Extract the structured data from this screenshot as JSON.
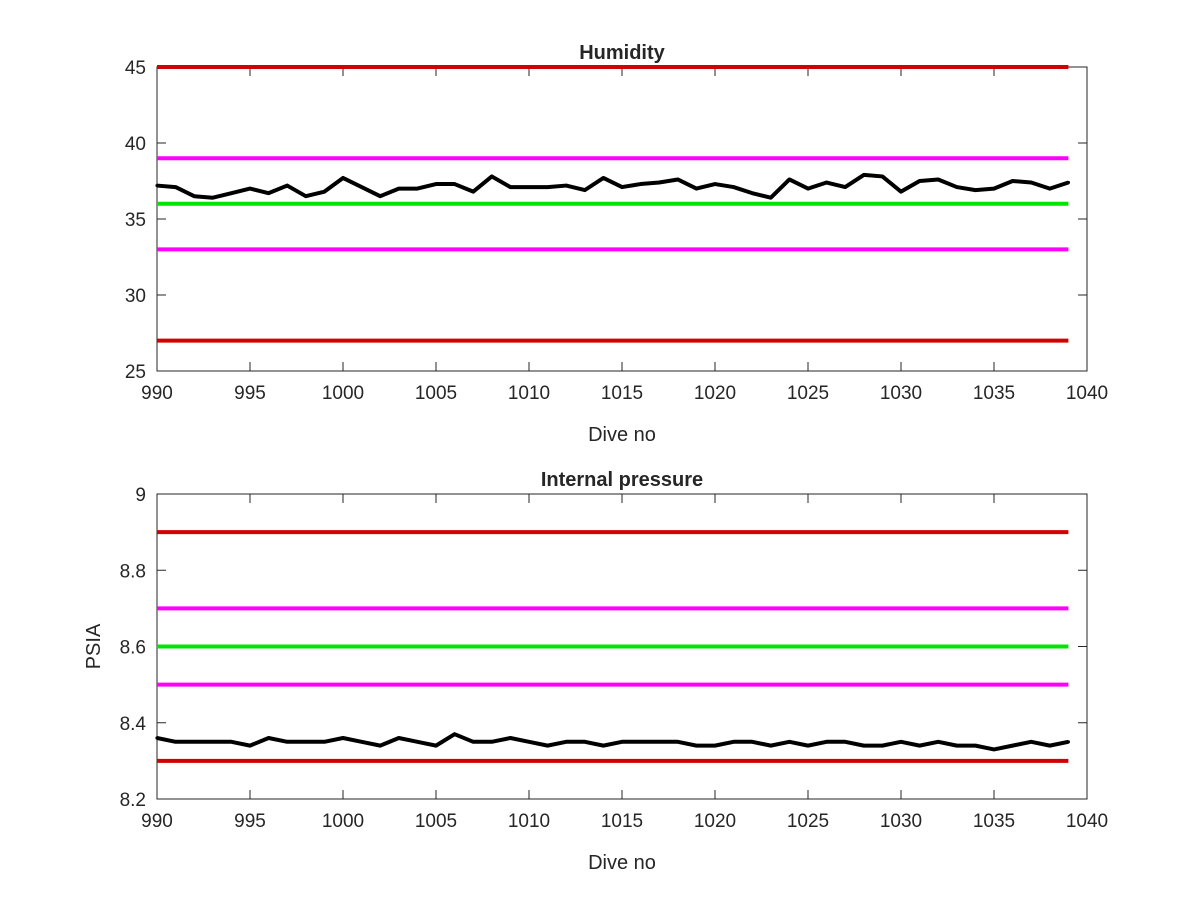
{
  "chart_data": [
    {
      "type": "line",
      "title": "Humidity",
      "xlabel": "Dive no",
      "ylabel": "",
      "xlim": [
        990,
        1040
      ],
      "ylim": [
        25,
        45
      ],
      "xticks": [
        990,
        995,
        1000,
        1005,
        1010,
        1015,
        1020,
        1025,
        1030,
        1035,
        1040
      ],
      "yticks": [
        25,
        30,
        35,
        40,
        45
      ],
      "grid": false,
      "legend": "none",
      "reference_lines": [
        {
          "y": 45,
          "color": "#d20000"
        },
        {
          "y": 39,
          "color": "#ff00ff"
        },
        {
          "y": 36,
          "color": "#00e600"
        },
        {
          "y": 33,
          "color": "#ff00ff"
        },
        {
          "y": 27,
          "color": "#d20000"
        }
      ],
      "series": [
        {
          "color": "#000000",
          "x": [
            990,
            991,
            992,
            993,
            994,
            995,
            996,
            997,
            998,
            999,
            1000,
            1001,
            1002,
            1003,
            1004,
            1005,
            1006,
            1007,
            1008,
            1009,
            1010,
            1011,
            1012,
            1013,
            1014,
            1015,
            1016,
            1017,
            1018,
            1019,
            1020,
            1021,
            1022,
            1023,
            1024,
            1025,
            1026,
            1027,
            1028,
            1029,
            1030,
            1031,
            1032,
            1033,
            1034,
            1035,
            1036,
            1037,
            1038,
            1039
          ],
          "values": [
            37.2,
            37.1,
            36.5,
            36.4,
            36.7,
            37.0,
            36.7,
            37.2,
            36.5,
            36.8,
            37.7,
            37.1,
            36.5,
            37.0,
            37.0,
            37.3,
            37.3,
            36.8,
            37.8,
            37.1,
            37.1,
            37.1,
            37.2,
            36.9,
            37.7,
            37.1,
            37.3,
            37.4,
            37.6,
            37.0,
            37.3,
            37.1,
            36.7,
            36.4,
            37.6,
            37.0,
            37.4,
            37.1,
            37.9,
            37.8,
            36.8,
            37.5,
            37.6,
            37.1,
            36.9,
            37.0,
            37.5,
            37.4,
            37.0,
            37.4
          ]
        }
      ]
    },
    {
      "type": "line",
      "title": "Internal pressure",
      "xlabel": "Dive no",
      "ylabel": "PSIA",
      "xlim": [
        990,
        1040
      ],
      "ylim": [
        8.2,
        9.0
      ],
      "xticks": [
        990,
        995,
        1000,
        1005,
        1010,
        1015,
        1020,
        1025,
        1030,
        1035,
        1040
      ],
      "yticks": [
        8.2,
        8.4,
        8.6,
        8.8,
        9
      ],
      "grid": false,
      "legend": "none",
      "reference_lines": [
        {
          "y": 8.9,
          "color": "#d20000"
        },
        {
          "y": 8.7,
          "color": "#ff00ff"
        },
        {
          "y": 8.6,
          "color": "#00e600"
        },
        {
          "y": 8.5,
          "color": "#ff00ff"
        },
        {
          "y": 8.3,
          "color": "#d20000"
        }
      ],
      "series": [
        {
          "color": "#000000",
          "x": [
            990,
            991,
            992,
            993,
            994,
            995,
            996,
            997,
            998,
            999,
            1000,
            1001,
            1002,
            1003,
            1004,
            1005,
            1006,
            1007,
            1008,
            1009,
            1010,
            1011,
            1012,
            1013,
            1014,
            1015,
            1016,
            1017,
            1018,
            1019,
            1020,
            1021,
            1022,
            1023,
            1024,
            1025,
            1026,
            1027,
            1028,
            1029,
            1030,
            1031,
            1032,
            1033,
            1034,
            1035,
            1036,
            1037,
            1038,
            1039
          ],
          "values": [
            8.36,
            8.35,
            8.35,
            8.35,
            8.35,
            8.34,
            8.36,
            8.35,
            8.35,
            8.35,
            8.36,
            8.35,
            8.34,
            8.36,
            8.35,
            8.34,
            8.37,
            8.35,
            8.35,
            8.36,
            8.35,
            8.34,
            8.35,
            8.35,
            8.34,
            8.35,
            8.35,
            8.35,
            8.35,
            8.34,
            8.34,
            8.35,
            8.35,
            8.34,
            8.35,
            8.34,
            8.35,
            8.35,
            8.34,
            8.34,
            8.35,
            8.34,
            8.35,
            8.34,
            8.34,
            8.33,
            8.34,
            8.35,
            8.34,
            8.35
          ]
        }
      ]
    }
  ]
}
